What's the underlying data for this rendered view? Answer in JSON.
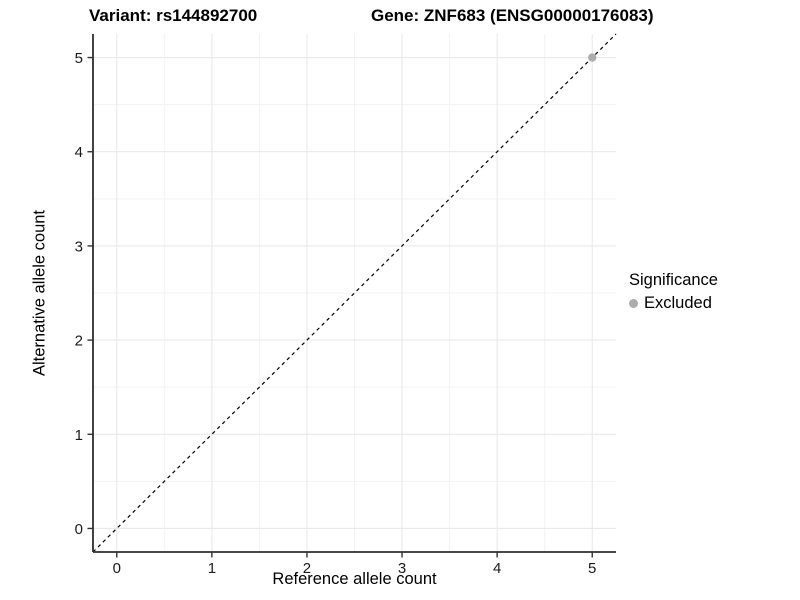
{
  "chart_data": {
    "type": "scatter",
    "title_variant": "Variant: rs144892700",
    "title_gene": "Gene: ZNF683 (ENSG00000176083)",
    "xlabel": "Reference allele count",
    "ylabel": "Alternative allele count",
    "xlim": [
      -0.25,
      5.25
    ],
    "ylim": [
      -0.25,
      5.25
    ],
    "x_ticks": [
      0,
      1,
      2,
      3,
      4,
      5
    ],
    "y_ticks": [
      0,
      1,
      2,
      3,
      4,
      5
    ],
    "minor_gridlines": [
      0.5,
      1.5,
      2.5,
      3.5,
      4.5
    ],
    "grid": "on",
    "identity_line": {
      "style": "dashed",
      "color": "#000000",
      "from": [
        -0.25,
        -0.25
      ],
      "to": [
        5.25,
        5.25
      ]
    },
    "series": [
      {
        "name": "Excluded",
        "marker": "circle",
        "color": "#adadad",
        "points": [
          [
            5,
            5
          ]
        ]
      }
    ],
    "legend": {
      "title": "Significance",
      "position": "right",
      "items": [
        {
          "label": "Excluded",
          "color": "#adadad"
        }
      ]
    }
  },
  "colors": {
    "background": "#ffffff",
    "grid_major": "#e9e9e9",
    "grid_minor": "#f3f3f3",
    "axis_line": "#2e2e2e",
    "tick_mark": "#333333",
    "tick_label": "#1b1b1b"
  }
}
